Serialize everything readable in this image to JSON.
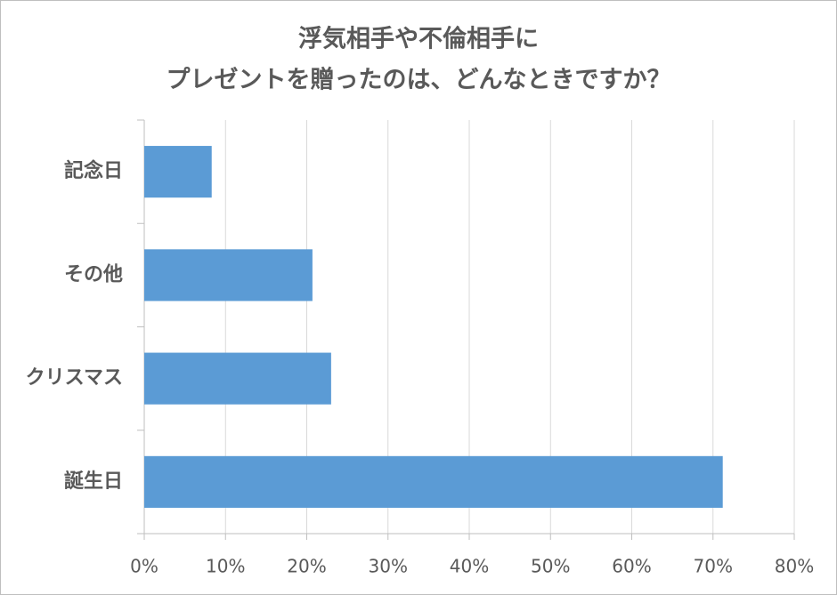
{
  "chart_data": {
    "type": "barh",
    "title": [
      "浮気相手や不倫相手に",
      "プレゼントを贈ったのは、どんなときですか？"
    ],
    "categories": [
      "記念日",
      "その他",
      "クリスマス",
      "誕生日"
    ],
    "values": [
      8.3,
      20.7,
      23.0,
      71.2
    ],
    "color": "#5b9bd5",
    "xlim": [
      0,
      80
    ],
    "xticks": [
      {
        "value": 0,
        "label": "0%"
      },
      {
        "value": 10,
        "label": "10%"
      },
      {
        "value": 20,
        "label": "20%"
      },
      {
        "value": 30,
        "label": "30%"
      },
      {
        "value": 40,
        "label": "40%"
      },
      {
        "value": 50,
        "label": "50%"
      },
      {
        "value": 60,
        "label": "60%"
      },
      {
        "value": 70,
        "label": "70%"
      },
      {
        "value": 80,
        "label": "80%"
      }
    ],
    "grid": true
  }
}
